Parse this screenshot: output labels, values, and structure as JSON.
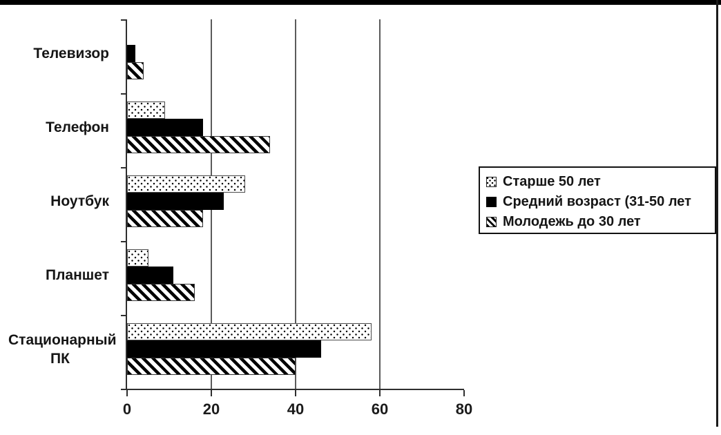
{
  "chart_data": {
    "type": "bar",
    "orientation": "horizontal",
    "title": "",
    "xlabel": "",
    "ylabel": "",
    "categories": [
      "Телевизор",
      "Телефон",
      "Ноутбук",
      "Планшет",
      "Стационарный ПК"
    ],
    "series": [
      {
        "name": "Старше 50 лет",
        "pattern": "dotted",
        "values": [
          0,
          9,
          28,
          5,
          58
        ]
      },
      {
        "name": "Средний возраст (31-50 лет",
        "pattern": "solid-black",
        "values": [
          2,
          18,
          23,
          11,
          46
        ]
      },
      {
        "name": "Молодежь до 30 лет",
        "pattern": "diagonal-hatch",
        "values": [
          4,
          34,
          18,
          16,
          40
        ]
      }
    ],
    "xlim": [
      0,
      80
    ],
    "x_ticks": [
      "0",
      "20",
      "40",
      "60",
      "80"
    ],
    "gridlines_at": [
      20,
      40,
      60
    ],
    "grid": true,
    "legend_position": "right",
    "colors": {
      "bar_solid": "#000000",
      "bar_background": "#ffffff",
      "axis": "#2e2e2e",
      "gridline": "#5a5a5a",
      "text": "#151515",
      "frame_border": "#000000"
    }
  }
}
